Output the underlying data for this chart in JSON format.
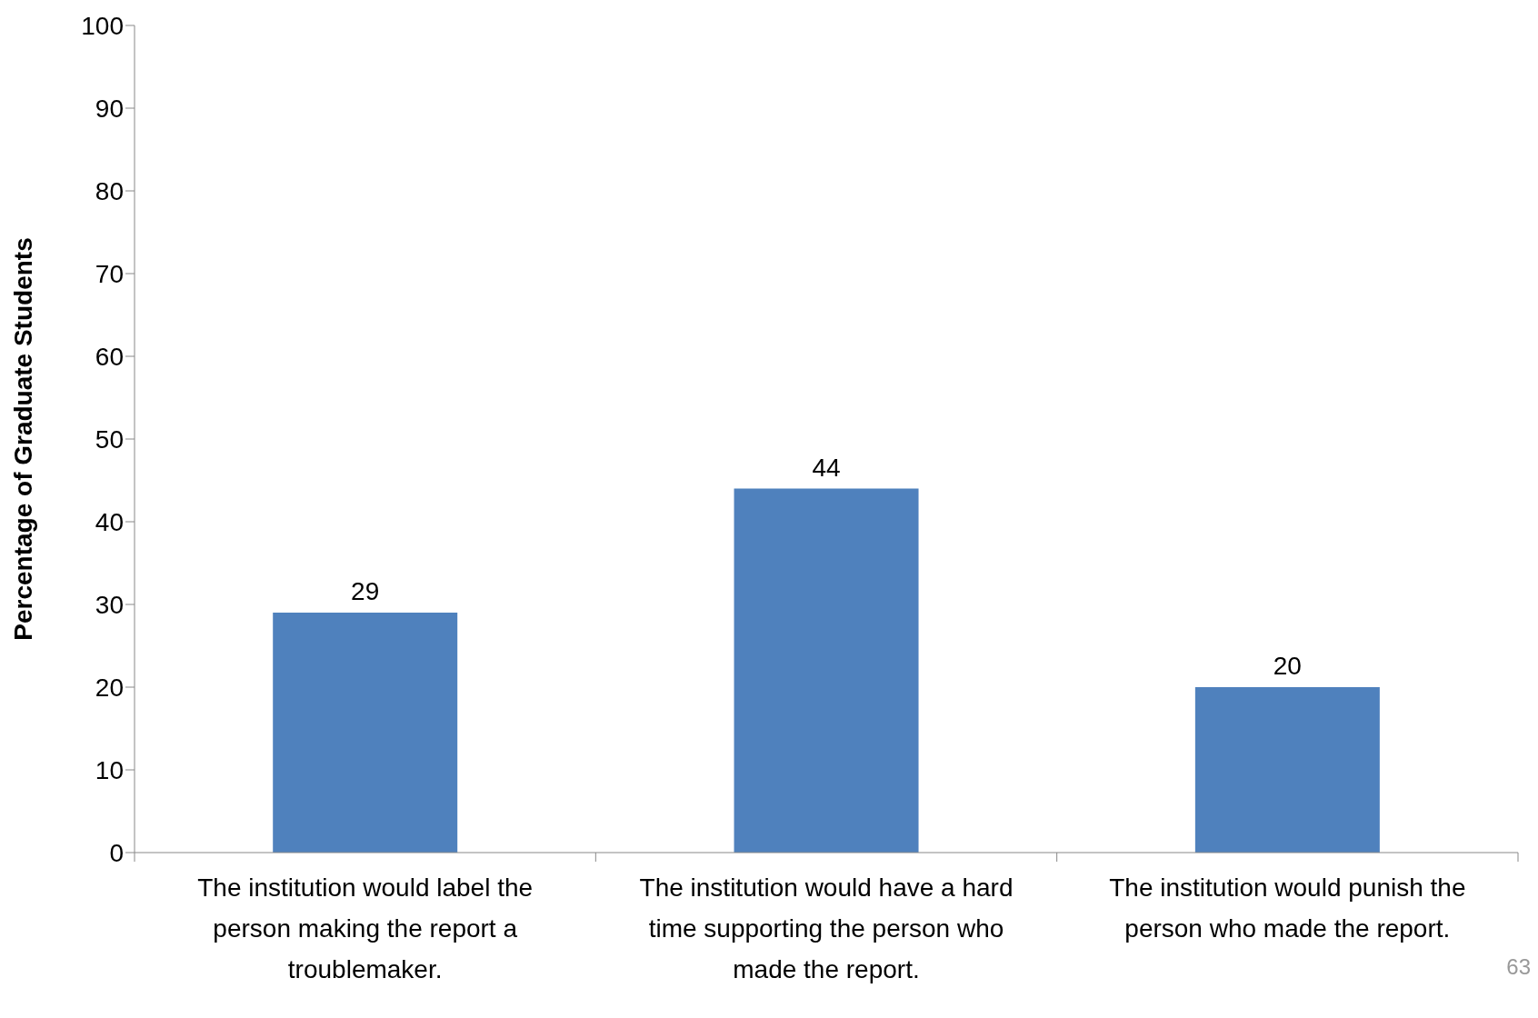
{
  "chart_data": {
    "type": "bar",
    "ylabel": "Percentage of Graduate Students",
    "categories": [
      "The institution would label the person making the report a troublemaker.",
      "The institution would have a hard time supporting the person who made the report.",
      "The institution would punish the person who made the report."
    ],
    "values": [
      29,
      44,
      20
    ],
    "color": "#4f81bd",
    "data_labels": true,
    "grid": false,
    "legend": false,
    "ylim": [
      0,
      100
    ],
    "yticks": [
      0,
      10,
      20,
      30,
      40,
      50,
      60,
      70,
      80,
      90,
      100
    ],
    "annotations": [
      "63"
    ]
  }
}
